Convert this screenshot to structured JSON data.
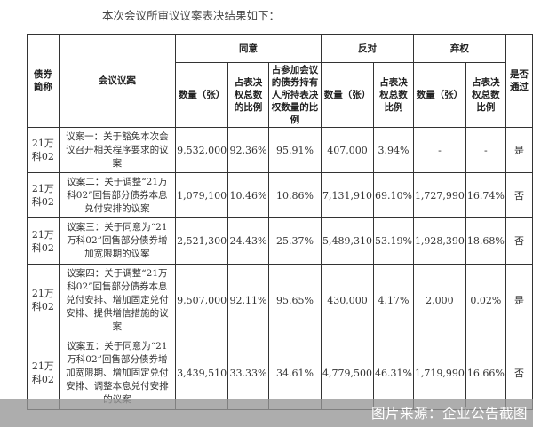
{
  "title": "本次会议所审议议案表决结果如下：",
  "headers": {
    "bond": "债券简称",
    "motion": "会议议案",
    "agree": "同意",
    "oppose": "反对",
    "abstain": "弃权",
    "passed": "是否通过",
    "qty": "数量（张）",
    "ratio_total": "占表决权总数的比例",
    "ratio_attend": "占参加会议的债券持有人所持表决权数量的比例",
    "ratio_total_short": "占表决权总数比例"
  },
  "rows": [
    {
      "bond": "21万科02",
      "motion": "议案一：关于豁免本次会议召开相关程序要求的议案",
      "agree_qty": "9,532,000",
      "agree_ratio": "92.36%",
      "agree_attend": "95.91%",
      "oppose_qty": "407,000",
      "oppose_ratio": "3.94%",
      "abstain_qty": "-",
      "abstain_ratio": "-",
      "passed": "是"
    },
    {
      "bond": "21万科02",
      "motion": "议案二：关于调整“21万科02”回售部分债券本息兑付安排的议案",
      "agree_qty": "1,079,100",
      "agree_ratio": "10.46%",
      "agree_attend": "10.86%",
      "oppose_qty": "7,131,910",
      "oppose_ratio": "69.10%",
      "abstain_qty": "1,727,990",
      "abstain_ratio": "16.74%",
      "passed": "否"
    },
    {
      "bond": "21万科02",
      "motion": "议案三：关于同意为“21万科02”回售部分债券增加宽限期的议案",
      "agree_qty": "2,521,300",
      "agree_ratio": "24.43%",
      "agree_attend": "25.37%",
      "oppose_qty": "5,489,310",
      "oppose_ratio": "53.19%",
      "abstain_qty": "1,928,390",
      "abstain_ratio": "18.68%",
      "passed": "否"
    },
    {
      "bond": "21万科02",
      "motion": "议案四：关于调整“21万科02”回售部分债券本息兑付安排、增加固定兑付安排、提供增信措施的议案",
      "agree_qty": "9,507,000",
      "agree_ratio": "92.11%",
      "agree_attend": "95.65%",
      "oppose_qty": "430,000",
      "oppose_ratio": "4.17%",
      "abstain_qty": "2,000",
      "abstain_ratio": "0.02%",
      "passed": "是"
    },
    {
      "bond": "21万科02",
      "motion": "议案五：关于同意为“21万科02”回售部分债券增加宽限期、增加固定兑付安排、调整本息兑付安排的议案",
      "agree_qty": "3,439,510",
      "agree_ratio": "33.33%",
      "agree_attend": "34.61%",
      "oppose_qty": "4,779,500",
      "oppose_ratio": "46.31%",
      "abstain_qty": "1,719,990",
      "abstain_ratio": "16.66%",
      "passed": "否"
    }
  ],
  "credit": "图片来源：企业公告截图"
}
